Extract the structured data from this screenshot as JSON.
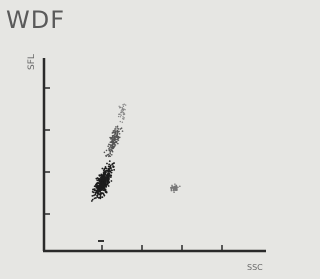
{
  "header": {
    "title": "WDF"
  },
  "plot": {
    "y_label": "SFL",
    "x_label": "SSC"
  }
}
